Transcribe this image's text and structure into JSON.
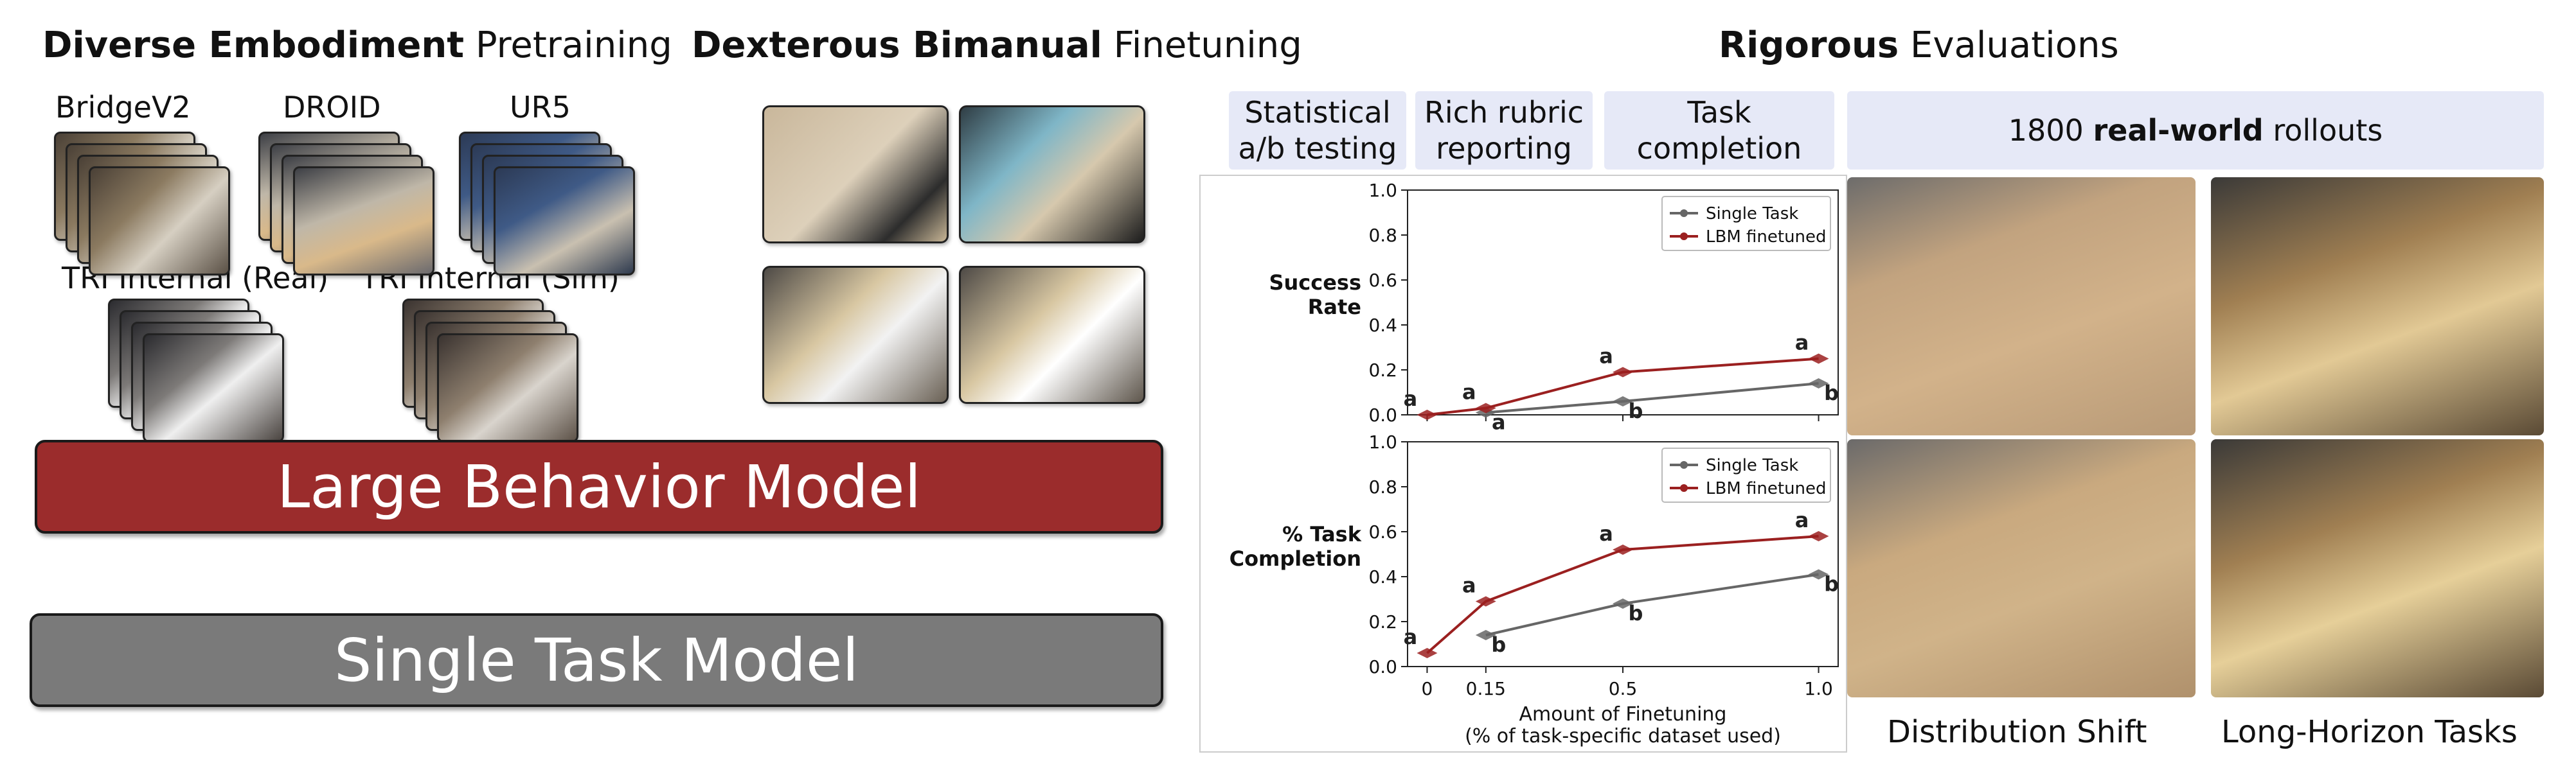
{
  "pretraining": {
    "title_bold": "Diverse Embodiment",
    "title_rest": " Pretraining",
    "datasets": [
      "BridgeV2",
      "DROID",
      "UR5",
      "TRI Internal (Real)",
      "TRI Internal (Sim)"
    ]
  },
  "finetuning": {
    "title_bold": "Dexterous Bimanual",
    "title_rest": " Finetuning"
  },
  "evaluations": {
    "title_bold": "Rigorous",
    "title_rest": " Evaluations",
    "pills": [
      "Statistical\na/b testing",
      "Rich rubric\nreporting",
      "Task\ncompletion"
    ],
    "rollouts_prefix": "1800 ",
    "rollouts_bold": "real-world",
    "rollouts_suffix": " rollouts",
    "captions": [
      "Distribution Shift",
      "Long-Horizon Tasks"
    ]
  },
  "models": {
    "large": "Large Behavior Model",
    "single": "Single Task Model",
    "large_color": "#9b2c2c",
    "single_color": "#7a7a7a"
  },
  "chart_data": {
    "type": "line",
    "xlabel": "Amount of Finetuning",
    "xlabel2": "(% of task-specific dataset used)",
    "x_ticks": [
      "0",
      "0.15",
      "0.5",
      "1.0"
    ],
    "y_ticks": [
      "0.0",
      "0.2",
      "0.4",
      "0.6",
      "0.8",
      "1.0"
    ],
    "ylim": [
      0,
      1
    ],
    "legend_position": "top-right",
    "panels": [
      {
        "ylabel": "Success\nRate",
        "series": [
          {
            "name": "Single Task",
            "color": "#666666",
            "x": [
              0.15,
              0.5,
              1.0
            ],
            "values": [
              0.01,
              0.06,
              0.14
            ],
            "letters": [
              "a",
              "b",
              "b"
            ]
          },
          {
            "name": "LBM finetuned",
            "color": "#9b2020",
            "x": [
              0,
              0.15,
              0.5,
              1.0
            ],
            "values": [
              0.0,
              0.03,
              0.19,
              0.25
            ],
            "letters": [
              "a",
              "a",
              "a",
              "a"
            ]
          }
        ]
      },
      {
        "ylabel": "% Task\nCompletion",
        "series": [
          {
            "name": "Single Task",
            "color": "#666666",
            "x": [
              0.15,
              0.5,
              1.0
            ],
            "values": [
              0.14,
              0.28,
              0.41
            ],
            "letters": [
              "b",
              "b",
              "b"
            ]
          },
          {
            "name": "LBM finetuned",
            "color": "#9b2020",
            "x": [
              0,
              0.15,
              0.5,
              1.0
            ],
            "values": [
              0.06,
              0.29,
              0.52,
              0.58
            ],
            "letters": [
              "a",
              "a",
              "a",
              "a"
            ]
          }
        ]
      }
    ]
  }
}
